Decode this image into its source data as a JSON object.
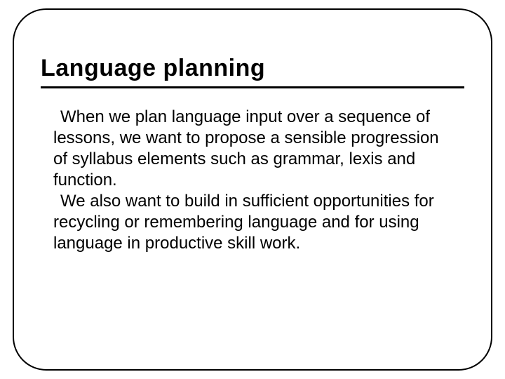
{
  "slide": {
    "title": "Language planning",
    "paragraph1": "When we plan language input over a sequence of lessons, we want to propose a sensible progression of syllabus elements such as grammar, lexis and function.",
    "paragraph2": "We also want to build in sufficient opportunities for recycling or remembering language and for using language in productive skill work.",
    "title_fontsize": 34,
    "body_fontsize": 24,
    "border_color": "#000000",
    "border_radius": 48,
    "background_color": "#ffffff",
    "text_color": "#000000"
  }
}
